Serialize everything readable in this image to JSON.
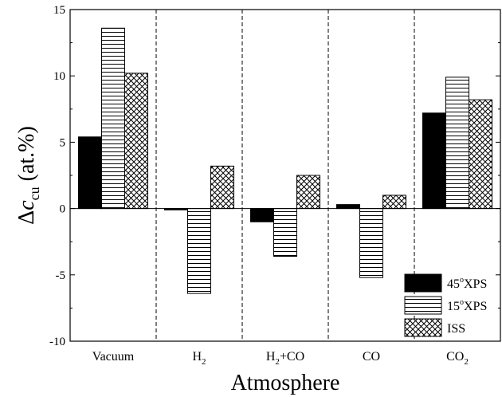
{
  "chart_data": {
    "type": "bar",
    "categories": [
      "Vacuum",
      "H",
      "H+CO",
      "CO",
      "CO"
    ],
    "category_subscripts": [
      "",
      "2",
      "2",
      "",
      "2"
    ],
    "category_suffixes": [
      "",
      "",
      "+CO",
      "",
      ""
    ],
    "category_bases": [
      "Vacuum",
      "H",
      "H",
      "CO",
      "CO"
    ],
    "series": [
      {
        "name": "45oXPS",
        "name_base": "45",
        "name_sup": "o",
        "name_rest": "XPS",
        "pattern": "solid",
        "color": "#000000",
        "values": [
          5.4,
          -0.1,
          -1.0,
          0.3,
          7.2
        ]
      },
      {
        "name": "15oXPS",
        "name_base": "15",
        "name_sup": "o",
        "name_rest": "XPS",
        "pattern": "horizontal-lines",
        "color": "#000000",
        "values": [
          13.6,
          -6.4,
          -3.6,
          -5.2,
          9.9
        ]
      },
      {
        "name": "ISS",
        "name_base": "ISS",
        "name_sup": "",
        "name_rest": "",
        "pattern": "crosshatch",
        "color": "#000000",
        "values": [
          10.2,
          3.2,
          2.5,
          1.0,
          8.2
        ]
      }
    ],
    "ylim": [
      -10,
      15
    ],
    "yticks": [
      -10,
      -5,
      0,
      5,
      10,
      15
    ],
    "ytick_labels": [
      "-10",
      "-5",
      "0",
      "5",
      "10",
      "15"
    ],
    "ylabel": {
      "prefix": "Δc",
      "subscript": "cu",
      "suffix": " (at.%)"
    },
    "xlabel": "Atmosphere",
    "separators": "dashed vertical lines between categories",
    "legend_position": "bottom-right",
    "grid": false
  }
}
